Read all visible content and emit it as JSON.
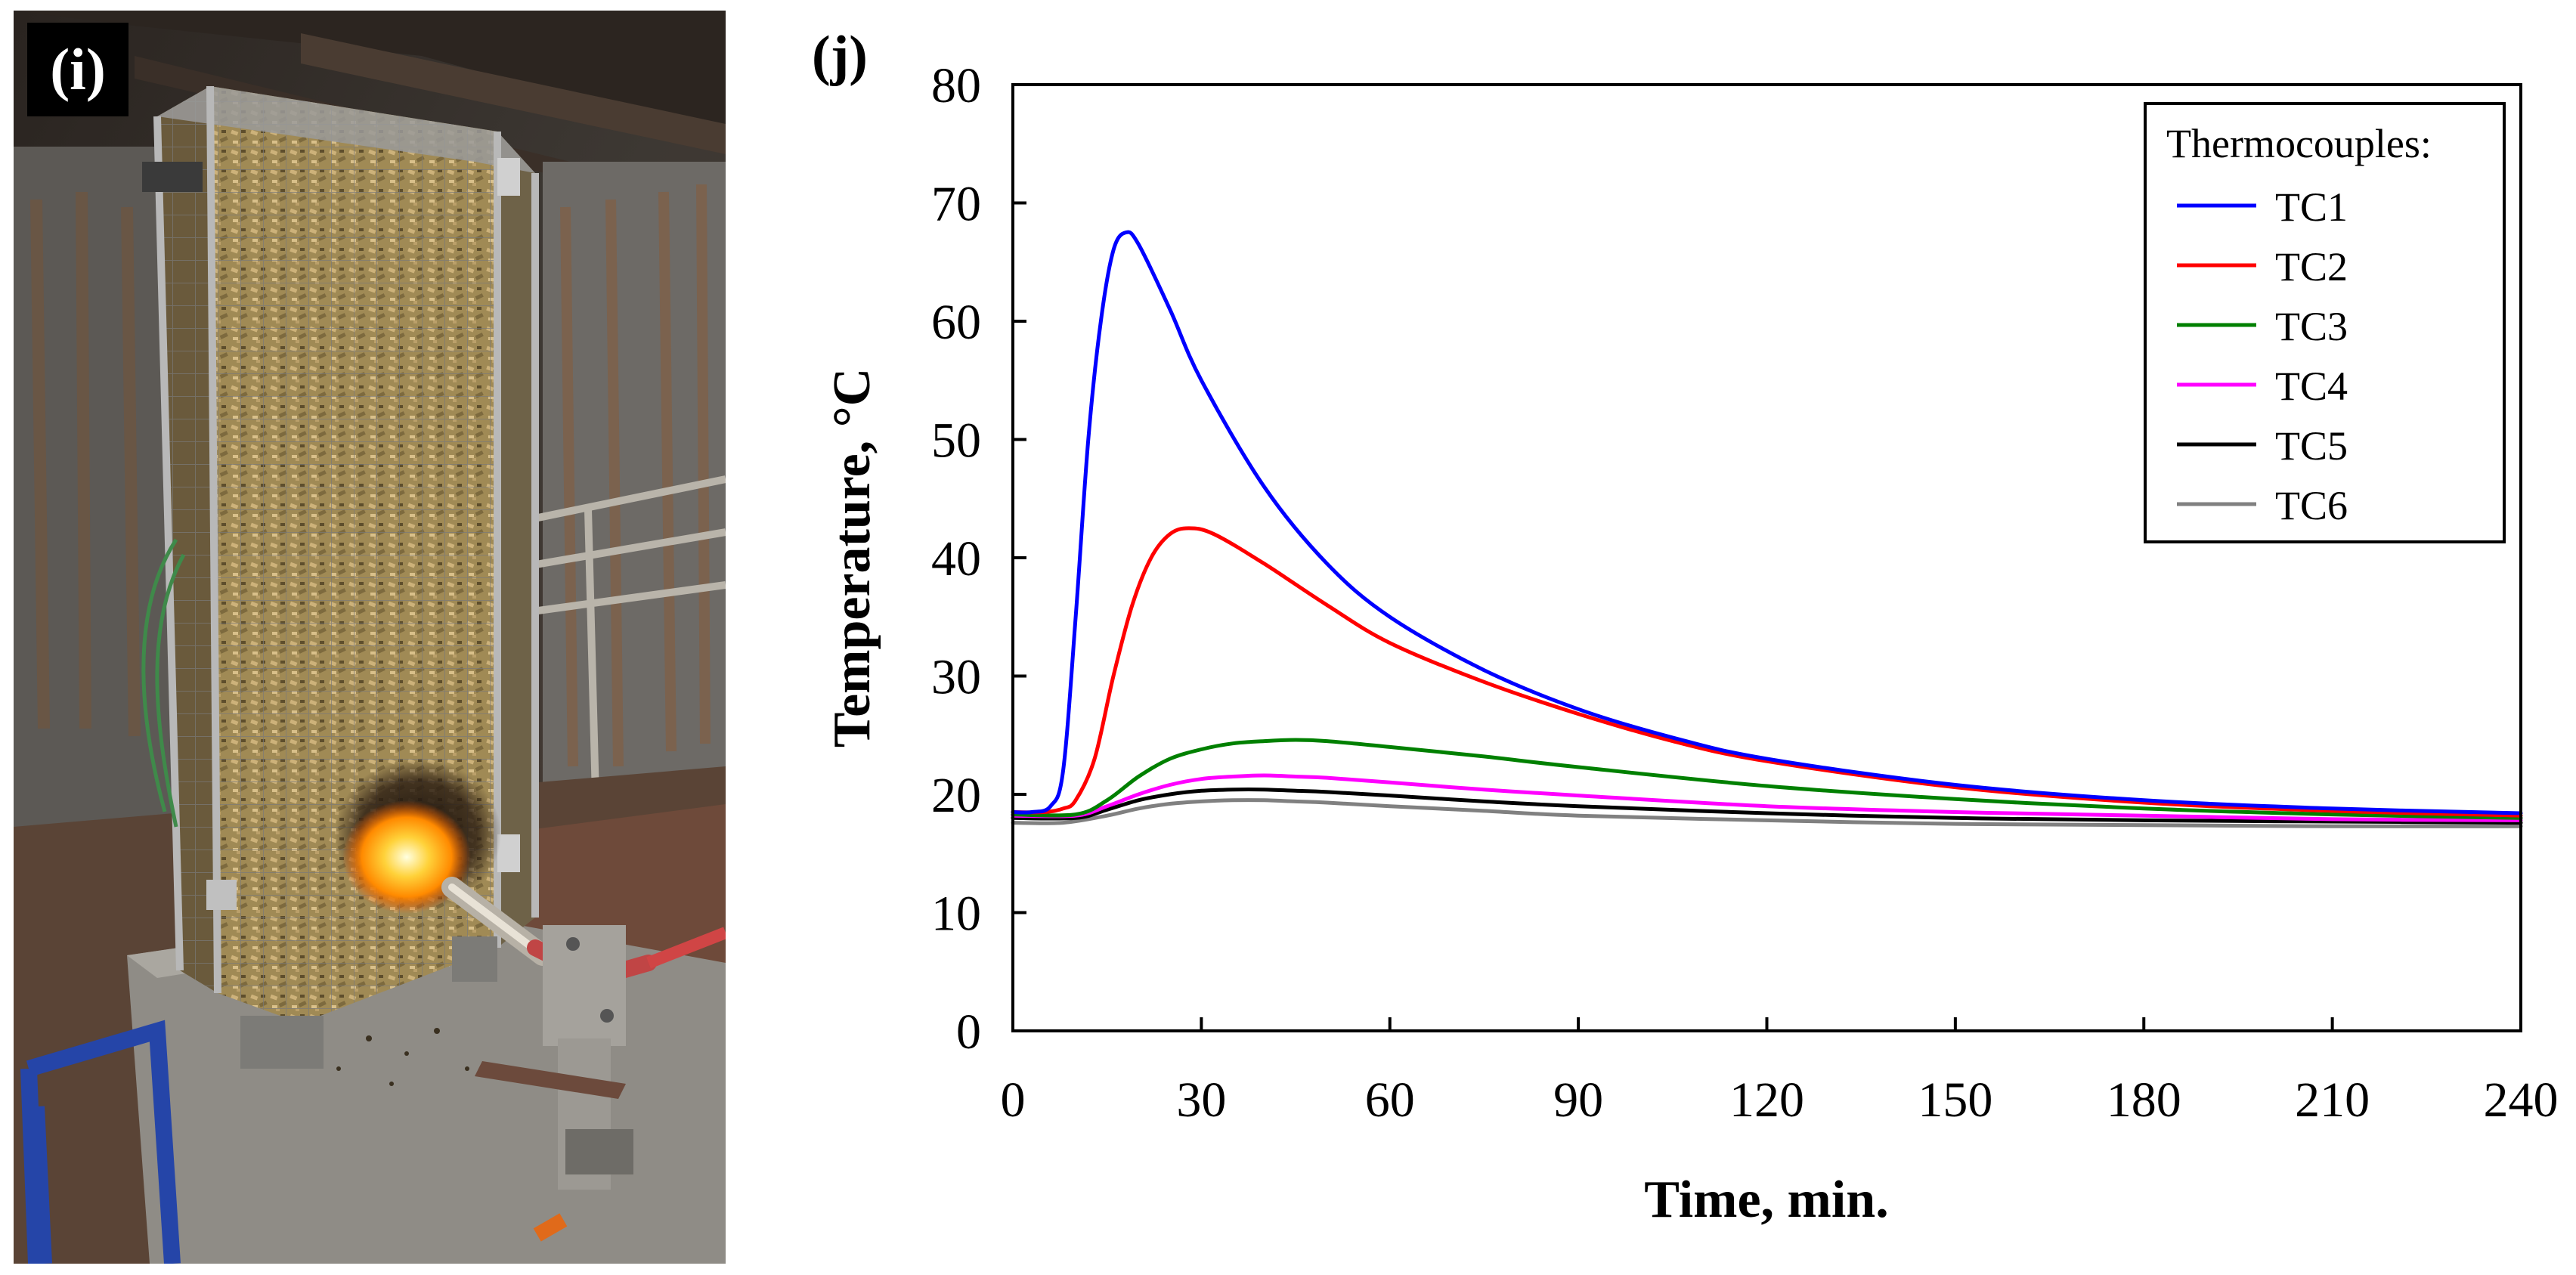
{
  "photo": {
    "panel_label": "(i)",
    "depicts": "wire-mesh-cage-with-wood-chips-and-burner"
  },
  "chart_data": {
    "type": "line",
    "panel_label": "(j)",
    "title": "",
    "xlabel": "Time, min.",
    "ylabel": "Temperature, °C",
    "xlim": [
      0,
      240
    ],
    "ylim": [
      0,
      80
    ],
    "xticks": [
      0,
      30,
      60,
      90,
      120,
      150,
      180,
      210,
      240
    ],
    "yticks": [
      0,
      10,
      20,
      30,
      40,
      50,
      60,
      70,
      80
    ],
    "grid": false,
    "legend": {
      "title": "Thermocouples:",
      "position": "top-right"
    },
    "series": [
      {
        "name": "TC1",
        "color": "#0000ff",
        "x": [
          0,
          3,
          6,
          8,
          10,
          12,
          14,
          16,
          18,
          20,
          25,
          30,
          40,
          50,
          60,
          75,
          90,
          105,
          120,
          150,
          180,
          210,
          240
        ],
        "y": [
          18.5,
          18.5,
          19.0,
          22.0,
          35.0,
          50.0,
          60.0,
          66.0,
          67.5,
          66.5,
          61.0,
          55.0,
          46.0,
          39.5,
          35.0,
          30.5,
          27.2,
          24.8,
          23.0,
          20.8,
          19.5,
          18.8,
          18.4
        ]
      },
      {
        "name": "TC2",
        "color": "#ff0000",
        "x": [
          0,
          5,
          8,
          10,
          13,
          16,
          19,
          22,
          25,
          28,
          32,
          40,
          50,
          60,
          75,
          90,
          105,
          120,
          150,
          180,
          210,
          240
        ],
        "y": [
          18.5,
          18.5,
          18.8,
          19.5,
          23.0,
          30.0,
          36.0,
          40.0,
          42.0,
          42.5,
          42.0,
          39.5,
          36.0,
          32.8,
          29.5,
          26.8,
          24.5,
          22.8,
          20.6,
          19.3,
          18.6,
          18.2
        ]
      },
      {
        "name": "TC3",
        "color": "#008000",
        "x": [
          0,
          10,
          15,
          20,
          25,
          30,
          35,
          40,
          45,
          50,
          60,
          75,
          90,
          120,
          150,
          180,
          210,
          240
        ],
        "y": [
          18.3,
          18.3,
          19.5,
          21.5,
          23.0,
          23.8,
          24.3,
          24.5,
          24.6,
          24.5,
          24.0,
          23.2,
          22.3,
          20.7,
          19.6,
          18.8,
          18.3,
          18.0
        ]
      },
      {
        "name": "TC4",
        "color": "#ff00ff",
        "x": [
          0,
          10,
          15,
          20,
          25,
          30,
          35,
          40,
          45,
          50,
          60,
          75,
          90,
          120,
          150,
          180,
          210,
          240
        ],
        "y": [
          18.2,
          18.2,
          19.0,
          20.0,
          20.8,
          21.3,
          21.5,
          21.6,
          21.5,
          21.4,
          21.0,
          20.4,
          19.9,
          19.0,
          18.5,
          18.2,
          17.9,
          17.8
        ]
      },
      {
        "name": "TC5",
        "color": "#000000",
        "x": [
          0,
          10,
          15,
          20,
          25,
          30,
          35,
          40,
          45,
          50,
          60,
          75,
          90,
          120,
          150,
          180,
          210,
          240
        ],
        "y": [
          18.0,
          18.0,
          18.7,
          19.5,
          20.0,
          20.3,
          20.4,
          20.4,
          20.3,
          20.2,
          19.9,
          19.4,
          19.0,
          18.4,
          18.0,
          17.8,
          17.7,
          17.6
        ]
      },
      {
        "name": "TC6",
        "color": "#808080",
        "x": [
          0,
          8,
          15,
          20,
          25,
          30,
          35,
          40,
          45,
          50,
          60,
          75,
          90,
          120,
          150,
          180,
          210,
          240
        ],
        "y": [
          17.6,
          17.6,
          18.2,
          18.8,
          19.2,
          19.4,
          19.5,
          19.5,
          19.4,
          19.3,
          19.0,
          18.6,
          18.2,
          17.8,
          17.5,
          17.4,
          17.3,
          17.3
        ]
      }
    ]
  }
}
